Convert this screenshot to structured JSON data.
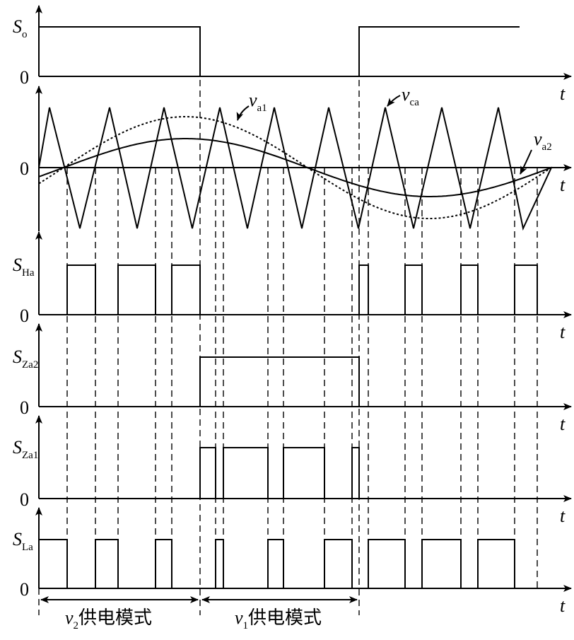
{
  "panels": [
    {
      "label": {
        "main": "S",
        "sub": "o"
      },
      "zero": "0",
      "axis": "t"
    },
    {
      "zero": "0",
      "axis": "t"
    },
    {
      "label": {
        "main": "S",
        "sub": "Ha"
      },
      "zero": "0",
      "axis": "t"
    },
    {
      "label": {
        "main": "S",
        "sub": "Za2"
      },
      "zero": "0",
      "axis": "t"
    },
    {
      "label": {
        "main": "S",
        "sub": "Za1"
      },
      "zero": "0",
      "axis": "t"
    },
    {
      "label": {
        "main": "S",
        "sub": "La"
      },
      "zero": "0",
      "axis": "t"
    }
  ],
  "curve_labels": [
    {
      "main": "v",
      "sub": "a1"
    },
    {
      "main": "v",
      "sub": "ca"
    },
    {
      "main": "v",
      "sub": "a2"
    }
  ],
  "modes": [
    {
      "main": "v",
      "sub": "2",
      "text": "供电模式"
    },
    {
      "main": "v",
      "sub": "1",
      "text": "供电模式"
    }
  ]
}
